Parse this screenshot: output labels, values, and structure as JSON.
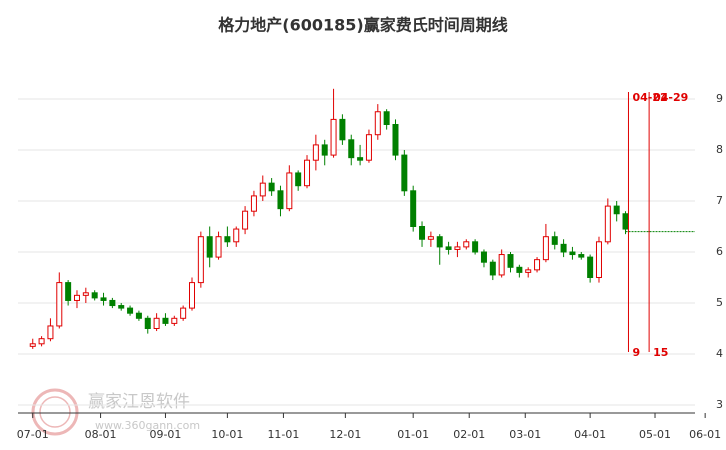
{
  "chart_data": {
    "type": "candlestick",
    "title": "格力地产(600185)赢家费氏时间周期线",
    "watermark": "赢家江恩软件",
    "watermark_url": "www.360gann.com",
    "up_color": "#e00000",
    "down_color": "#008000",
    "x": [
      0,
      3,
      6,
      9,
      12,
      15,
      18,
      21,
      24,
      27,
      30,
      33,
      36,
      39,
      42,
      45,
      48,
      51,
      54,
      57,
      60,
      63,
      66,
      69,
      72,
      75,
      78,
      81,
      84,
      87,
      90,
      93,
      96,
      99,
      102,
      105,
      108,
      111,
      114,
      117,
      120,
      123,
      126,
      129,
      132,
      135,
      138,
      141,
      144,
      147,
      150,
      153,
      156,
      159,
      162,
      165,
      168,
      171,
      174,
      177,
      180,
      183,
      186,
      189,
      192,
      195,
      198,
      201
    ],
    "open": [
      4.15,
      4.2,
      4.3,
      4.55,
      5.4,
      5.05,
      5.15,
      5.2,
      5.1,
      5.05,
      4.95,
      4.9,
      4.8,
      4.7,
      4.5,
      4.7,
      4.6,
      4.7,
      4.9,
      5.4,
      6.3,
      5.9,
      6.3,
      6.2,
      6.45,
      6.8,
      7.1,
      7.35,
      7.2,
      6.85,
      7.55,
      7.3,
      7.8,
      8.1,
      7.9,
      8.6,
      8.2,
      7.85,
      7.8,
      8.3,
      8.75,
      8.5,
      7.9,
      7.2,
      6.5,
      6.25,
      6.3,
      6.1,
      6.05,
      6.1,
      6.2,
      6.0,
      5.8,
      5.55,
      5.95,
      5.7,
      5.6,
      5.65,
      5.85,
      6.3,
      6.15,
      6.0,
      5.95,
      5.9,
      5.5,
      6.2,
      6.9,
      6.75
    ],
    "high": [
      4.3,
      4.35,
      4.7,
      5.6,
      5.45,
      5.25,
      5.3,
      5.25,
      5.2,
      5.1,
      5.0,
      4.95,
      4.85,
      4.75,
      4.8,
      4.8,
      4.75,
      4.95,
      5.5,
      6.4,
      6.5,
      6.4,
      6.5,
      6.5,
      6.9,
      7.2,
      7.5,
      7.45,
      7.3,
      7.7,
      7.6,
      7.9,
      8.3,
      8.2,
      9.2,
      8.7,
      8.3,
      8.1,
      8.4,
      8.9,
      8.8,
      8.6,
      8.0,
      7.3,
      6.6,
      6.4,
      6.35,
      6.2,
      6.2,
      6.25,
      6.25,
      6.05,
      5.85,
      6.05,
      6.0,
      5.75,
      5.7,
      5.9,
      6.55,
      6.4,
      6.25,
      6.1,
      6.0,
      5.95,
      6.3,
      7.05,
      7.0,
      6.8
    ],
    "low": [
      4.1,
      4.15,
      4.25,
      4.5,
      4.95,
      4.9,
      5.0,
      5.05,
      4.95,
      4.9,
      4.85,
      4.75,
      4.65,
      4.4,
      4.45,
      4.55,
      4.55,
      4.65,
      4.85,
      5.3,
      5.7,
      5.85,
      6.1,
      6.1,
      6.35,
      6.7,
      7.0,
      7.1,
      6.7,
      6.8,
      7.2,
      7.25,
      7.6,
      7.7,
      7.85,
      8.1,
      7.7,
      7.7,
      7.75,
      8.2,
      8.4,
      7.8,
      7.1,
      6.4,
      6.1,
      6.1,
      5.75,
      5.95,
      5.9,
      6.05,
      5.95,
      5.7,
      5.45,
      5.5,
      5.6,
      5.5,
      5.5,
      5.6,
      5.8,
      6.05,
      5.9,
      5.85,
      5.85,
      5.4,
      5.4,
      6.15,
      6.6,
      6.35
    ],
    "close": [
      4.2,
      4.3,
      4.55,
      5.4,
      5.05,
      5.15,
      5.2,
      5.1,
      5.05,
      4.95,
      4.9,
      4.8,
      4.7,
      4.5,
      4.7,
      4.6,
      4.7,
      4.9,
      5.4,
      6.3,
      5.9,
      6.3,
      6.2,
      6.45,
      6.8,
      7.1,
      7.35,
      7.2,
      6.85,
      7.55,
      7.3,
      7.8,
      8.1,
      7.9,
      8.6,
      8.2,
      7.85,
      7.8,
      8.3,
      8.75,
      8.5,
      7.9,
      7.2,
      6.5,
      6.25,
      6.3,
      6.1,
      6.05,
      6.1,
      6.2,
      6.0,
      5.8,
      5.55,
      5.95,
      5.7,
      5.6,
      5.65,
      5.85,
      6.3,
      6.15,
      6.0,
      5.95,
      5.9,
      5.5,
      6.2,
      6.9,
      6.75,
      6.45
    ],
    "level": 6.4,
    "level_color": "#008000",
    "cycle_lines": [
      {
        "x": 202,
        "top_label": "04-22",
        "bottom_label": "9"
      },
      {
        "x": 209,
        "top_label": "04-29",
        "bottom_label": "15"
      }
    ],
    "cycle_color": "#e00000",
    "xlim": [
      -5,
      231
    ],
    "xticks": [
      {
        "value": 0,
        "label": "07-01"
      },
      {
        "value": 23,
        "label": "08-01"
      },
      {
        "value": 45,
        "label": "09-01"
      },
      {
        "value": 66,
        "label": "10-01"
      },
      {
        "value": 85,
        "label": "11-01"
      },
      {
        "value": 106,
        "label": "12-01"
      },
      {
        "value": 129,
        "label": "01-01"
      },
      {
        "value": 148,
        "label": "02-01"
      },
      {
        "value": 167,
        "label": "03-01"
      },
      {
        "value": 189,
        "label": "04-01"
      },
      {
        "value": 211,
        "label": "05-01"
      },
      {
        "value": 228,
        "label": "06-01"
      }
    ],
    "ylim": [
      3,
      9
    ],
    "yticks": [
      3,
      4,
      5,
      6,
      7,
      8,
      9
    ],
    "grid": true
  }
}
